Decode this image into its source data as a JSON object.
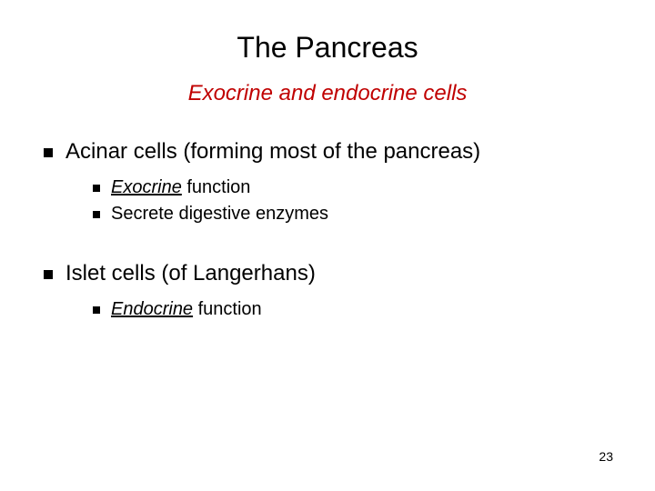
{
  "title": "The Pancreas",
  "subtitle": "Exocrine and endocrine cells",
  "bullets": [
    {
      "text": "Acinar cells (forming most of the pancreas)",
      "sub": [
        {
          "word": "Exocrine",
          "rest": " function"
        },
        {
          "plain": "Secrete digestive enzymes"
        }
      ]
    },
    {
      "text": "Islet cells (of Langerhans)",
      "sub": [
        {
          "word": "Endocrine",
          "rest": " function"
        }
      ]
    }
  ],
  "page_number": "23",
  "colors": {
    "title": "#000000",
    "subtitle": "#c00000",
    "text": "#000000",
    "background": "#ffffff",
    "bullet": "#000000"
  },
  "fonts": {
    "title_size": 32,
    "subtitle_size": 24,
    "l1_size": 24,
    "l2_size": 20,
    "pagenum_size": 14
  }
}
